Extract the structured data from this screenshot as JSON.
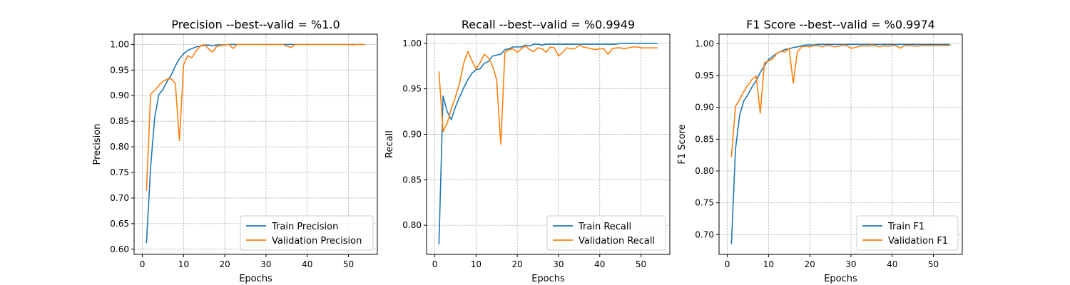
{
  "chart_data": [
    {
      "type": "line",
      "title": "Precision --best--valid = %1.0",
      "xlabel": "Epochs",
      "ylabel": "Precision",
      "xlim": [
        -2,
        57
      ],
      "ylim": [
        0.59,
        1.02
      ],
      "xticks": [
        0,
        10,
        20,
        30,
        40,
        50
      ],
      "yticks": [
        "0.60",
        "0.65",
        "0.70",
        "0.75",
        "0.80",
        "0.85",
        "0.90",
        "0.95",
        "1.00"
      ],
      "grid": true,
      "legend_position": "lower-right",
      "x": [
        1,
        2,
        3,
        4,
        5,
        6,
        7,
        8,
        9,
        10,
        11,
        12,
        13,
        14,
        15,
        16,
        17,
        18,
        19,
        20,
        21,
        22,
        23,
        24,
        25,
        26,
        27,
        28,
        29,
        30,
        31,
        32,
        33,
        34,
        35,
        36,
        37,
        38,
        39,
        40,
        41,
        42,
        43,
        44,
        45,
        46,
        47,
        48,
        49,
        50,
        51,
        52,
        53,
        54
      ],
      "series": [
        {
          "name": "Train Precision",
          "color": "#1f77b4",
          "values": [
            0.612,
            0.76,
            0.858,
            0.902,
            0.912,
            0.928,
            0.94,
            0.958,
            0.972,
            0.982,
            0.988,
            0.992,
            0.995,
            0.997,
            0.998,
            0.999,
            0.997,
            0.999,
            0.999,
            0.999,
            1.0,
            1.0,
            1.0,
            1.0,
            1.0,
            1.0,
            1.0,
            1.0,
            1.0,
            1.0,
            1.0,
            1.0,
            1.0,
            1.0,
            1.0,
            1.0,
            1.0,
            1.0,
            1.0,
            1.0,
            1.0,
            1.0,
            1.0,
            1.0,
            1.0,
            1.0,
            1.0,
            1.0,
            1.0,
            1.0,
            1.0,
            1.0,
            1.0,
            1.0
          ]
        },
        {
          "name": "Validation Precision",
          "color": "#ff7f0e",
          "values": [
            0.714,
            0.903,
            0.91,
            0.92,
            0.928,
            0.932,
            0.933,
            0.924,
            0.812,
            0.96,
            0.978,
            0.974,
            0.987,
            0.996,
            1.0,
            0.992,
            0.985,
            0.996,
            0.998,
            0.999,
            1.0,
            0.992,
            1.0,
            1.0,
            1.0,
            1.0,
            1.0,
            1.0,
            1.0,
            1.0,
            1.0,
            1.0,
            1.0,
            1.0,
            0.997,
            0.994,
            1.0,
            1.0,
            1.0,
            1.0,
            1.0,
            1.0,
            1.0,
            1.0,
            1.0,
            1.0,
            1.0,
            1.0,
            1.0,
            1.0,
            0.999,
            1.0,
            1.0,
            1.0
          ]
        }
      ]
    },
    {
      "type": "line",
      "title": "Recall --best--valid = %0.9949",
      "xlabel": "Epochs",
      "ylabel": "Recall",
      "xlim": [
        -2,
        57
      ],
      "ylim": [
        0.768,
        1.01
      ],
      "xticks": [
        0,
        10,
        20,
        30,
        40,
        50
      ],
      "yticks": [
        "0.80",
        "0.85",
        "0.90",
        "0.95",
        "1.00"
      ],
      "grid": true,
      "legend_position": "lower-right",
      "x": [
        1,
        2,
        3,
        4,
        5,
        6,
        7,
        8,
        9,
        10,
        11,
        12,
        13,
        14,
        15,
        16,
        17,
        18,
        19,
        20,
        21,
        22,
        23,
        24,
        25,
        26,
        27,
        28,
        29,
        30,
        31,
        32,
        33,
        34,
        35,
        36,
        37,
        38,
        39,
        40,
        41,
        42,
        43,
        44,
        45,
        46,
        47,
        48,
        49,
        50,
        51,
        52,
        53,
        54
      ],
      "series": [
        {
          "name": "Train Recall",
          "color": "#1f77b4",
          "values": [
            0.779,
            0.942,
            0.925,
            0.916,
            0.93,
            0.941,
            0.951,
            0.96,
            0.967,
            0.971,
            0.972,
            0.978,
            0.98,
            0.986,
            0.987,
            0.988,
            0.993,
            0.994,
            0.996,
            0.996,
            0.996,
            0.998,
            0.997,
            0.999,
            0.999,
            0.998,
            0.999,
            0.999,
            0.999,
            0.999,
            0.999,
            0.999,
            0.999,
            0.999,
            0.999,
            0.999,
            0.999,
            0.999,
            0.999,
            0.999,
            0.999,
            0.999,
            0.999,
            0.999,
            1.0,
            1.0,
            1.0,
            1.0,
            1.0,
            1.0,
            1.0,
            1.0,
            1.0,
            1.0
          ]
        },
        {
          "name": "Validation Recall",
          "color": "#ff7f0e",
          "values": [
            0.969,
            0.903,
            0.912,
            0.928,
            0.941,
            0.956,
            0.978,
            0.991,
            0.981,
            0.972,
            0.979,
            0.988,
            0.984,
            0.975,
            0.96,
            0.889,
            0.99,
            0.993,
            0.994,
            0.99,
            0.994,
            0.997,
            0.993,
            0.991,
            0.995,
            0.994,
            0.99,
            0.996,
            0.995,
            0.986,
            0.99,
            0.995,
            0.994,
            0.994,
            0.998,
            0.996,
            0.995,
            0.994,
            0.993,
            0.994,
            0.994,
            0.988,
            0.994,
            0.995,
            0.995,
            0.994,
            0.995,
            0.996,
            0.996,
            0.995,
            0.995,
            0.995,
            0.995,
            0.995
          ]
        }
      ]
    },
    {
      "type": "line",
      "title": "F1 Score --best--valid = %0.9974",
      "xlabel": "Epochs",
      "ylabel": "F1 Score",
      "xlim": [
        -2,
        57
      ],
      "ylim": [
        0.669,
        1.015
      ],
      "xticks": [
        0,
        10,
        20,
        30,
        40,
        50
      ],
      "yticks": [
        "0.70",
        "0.75",
        "0.80",
        "0.85",
        "0.90",
        "0.95",
        "1.00"
      ],
      "grid": true,
      "legend_position": "lower-right",
      "x": [
        1,
        2,
        3,
        4,
        5,
        6,
        7,
        8,
        9,
        10,
        11,
        12,
        13,
        14,
        15,
        16,
        17,
        18,
        19,
        20,
        21,
        22,
        23,
        24,
        25,
        26,
        27,
        28,
        29,
        30,
        31,
        32,
        33,
        34,
        35,
        36,
        37,
        38,
        39,
        40,
        41,
        42,
        43,
        44,
        45,
        46,
        47,
        48,
        49,
        50,
        51,
        52,
        53,
        54
      ],
      "series": [
        {
          "name": "Train F1",
          "color": "#1f77b4",
          "values": [
            0.685,
            0.835,
            0.888,
            0.91,
            0.92,
            0.932,
            0.942,
            0.955,
            0.965,
            0.975,
            0.98,
            0.985,
            0.988,
            0.991,
            0.992,
            0.994,
            0.995,
            0.997,
            0.998,
            0.998,
            0.998,
            0.999,
            0.999,
            0.999,
            0.999,
            0.999,
            0.999,
            0.999,
            0.999,
            0.999,
            0.999,
            0.999,
            0.999,
            0.999,
            0.999,
            0.999,
            0.999,
            0.999,
            0.999,
            0.999,
            0.999,
            0.999,
            0.999,
            0.999,
            0.999,
            0.999,
            0.999,
            0.999,
            0.999,
            0.999,
            0.999,
            0.999,
            0.999,
            0.999
          ]
        },
        {
          "name": "Validation F1",
          "color": "#ff7f0e",
          "values": [
            0.822,
            0.902,
            0.912,
            0.925,
            0.935,
            0.944,
            0.949,
            0.891,
            0.97,
            0.973,
            0.976,
            0.985,
            0.988,
            0.987,
            0.993,
            0.938,
            0.987,
            0.995,
            0.996,
            0.995,
            0.997,
            0.997,
            0.995,
            0.997,
            0.997,
            0.995,
            0.996,
            0.998,
            0.997,
            0.993,
            0.994,
            0.996,
            0.997,
            0.996,
            0.998,
            0.997,
            0.995,
            0.997,
            0.996,
            0.997,
            0.997,
            0.993,
            0.997,
            0.997,
            0.997,
            0.996,
            0.997,
            0.997,
            0.997,
            0.997,
            0.997,
            0.997,
            0.997,
            0.997
          ]
        }
      ]
    }
  ]
}
